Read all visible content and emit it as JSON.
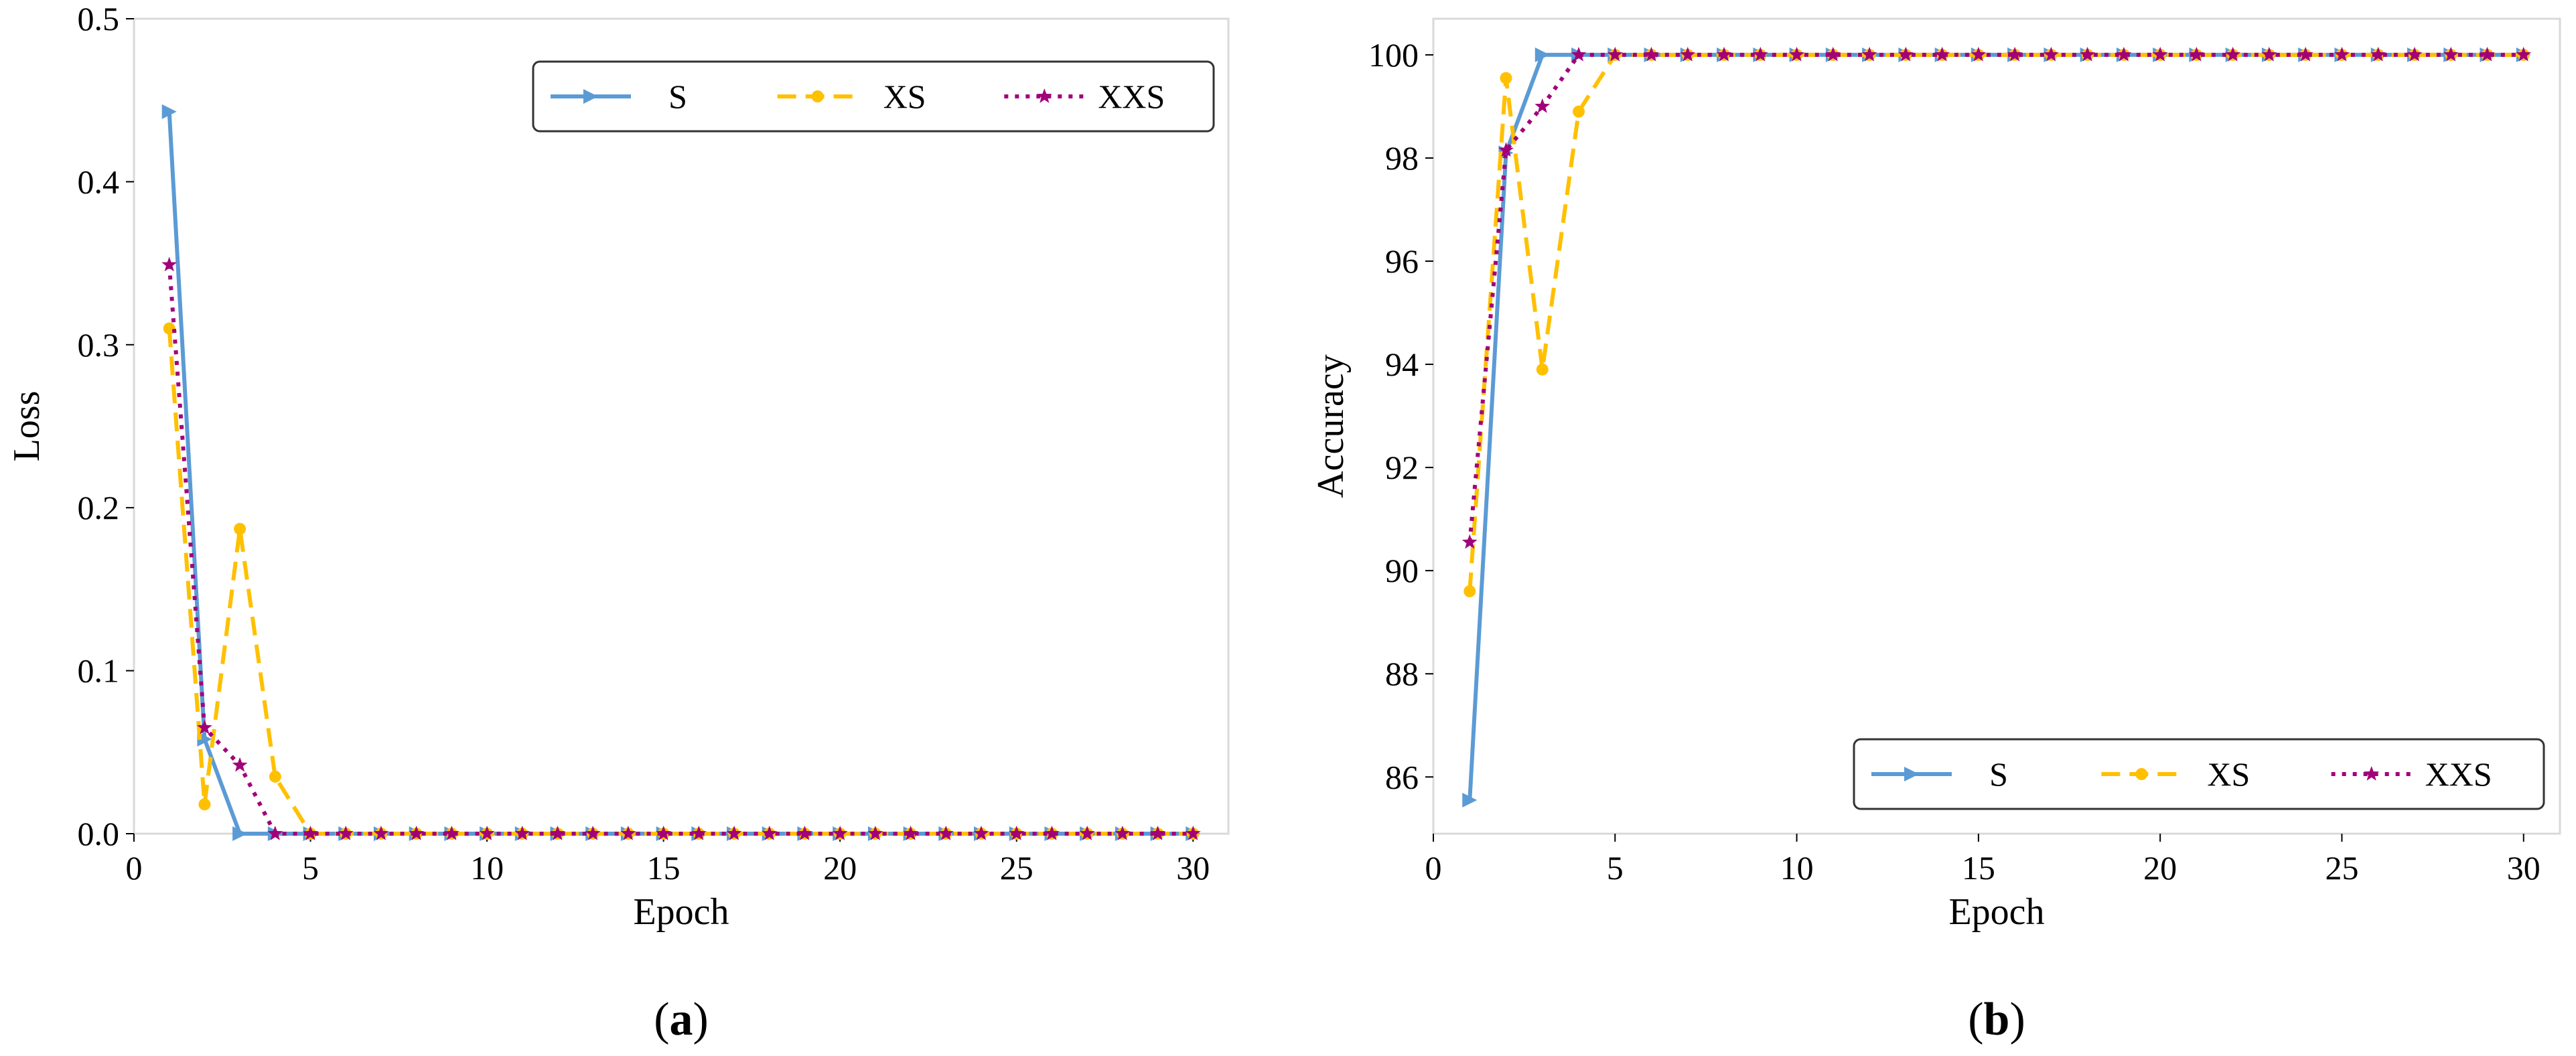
{
  "colors": {
    "S": "#5b9bd5",
    "XS": "#ffc000",
    "XXS": "#a2007a",
    "frame": "#d9d9d9",
    "legend_border": "#333333"
  },
  "chart_data": [
    {
      "type": "line",
      "panel_label_open": "(",
      "panel_label_letter": "a",
      "panel_label_close": ")",
      "xlabel": "Epoch",
      "ylabel": "Loss",
      "xlim": [
        0,
        31
      ],
      "ylim": [
        0,
        0.5
      ],
      "xticks": [
        0,
        5,
        10,
        15,
        20,
        25,
        30
      ],
      "yticks": [
        0.0,
        0.1,
        0.2,
        0.3,
        0.4,
        0.5
      ],
      "ytick_labels": [
        "0.0",
        "0.1",
        "0.2",
        "0.3",
        "0.4",
        "0.5"
      ],
      "grid": false,
      "legend_position": "top-right",
      "x": [
        1,
        2,
        3,
        4,
        5,
        6,
        7,
        8,
        9,
        10,
        11,
        12,
        13,
        14,
        15,
        16,
        17,
        18,
        19,
        20,
        21,
        22,
        23,
        24,
        25,
        26,
        27,
        28,
        29,
        30
      ],
      "series": [
        {
          "name": "S",
          "marker": "triangle-right",
          "dash": "solid",
          "values": [
            0.443,
            0.058,
            0.0,
            0.0,
            0.0,
            0.0,
            0.0,
            0.0,
            0.0,
            0.0,
            0.0,
            0.0,
            0.0,
            0.0,
            0.0,
            0.0,
            0.0,
            0.0,
            0.0,
            0.0,
            0.0,
            0.0,
            0.0,
            0.0,
            0.0,
            0.0,
            0.0,
            0.0,
            0.0,
            0.0
          ]
        },
        {
          "name": "XS",
          "marker": "circle",
          "dash": "dashed",
          "values": [
            0.31,
            0.018,
            0.187,
            0.035,
            0.0,
            0.0,
            0.0,
            0.0,
            0.0,
            0.0,
            0.0,
            0.0,
            0.0,
            0.0,
            0.0,
            0.0,
            0.0,
            0.0,
            0.0,
            0.0,
            0.0,
            0.0,
            0.0,
            0.0,
            0.0,
            0.0,
            0.0,
            0.0,
            0.0,
            0.0
          ]
        },
        {
          "name": "XXS",
          "marker": "star",
          "dash": "dotted",
          "values": [
            0.349,
            0.065,
            0.042,
            0.0,
            0.0,
            0.0,
            0.0,
            0.0,
            0.0,
            0.0,
            0.0,
            0.0,
            0.0,
            0.0,
            0.0,
            0.0,
            0.0,
            0.0,
            0.0,
            0.0,
            0.0,
            0.0,
            0.0,
            0.0,
            0.0,
            0.0,
            0.0,
            0.0,
            0.0,
            0.0
          ]
        }
      ]
    },
    {
      "type": "line",
      "panel_label_open": "(",
      "panel_label_letter": "b",
      "panel_label_close": ")",
      "xlabel": "Epoch",
      "ylabel": "Accuracy",
      "xlim": [
        0,
        31
      ],
      "ylim": [
        84.9,
        100.7
      ],
      "xticks": [
        0,
        5,
        10,
        15,
        20,
        25,
        30
      ],
      "yticks": [
        86,
        88,
        90,
        92,
        94,
        96,
        98,
        100
      ],
      "ytick_labels": [
        "86",
        "88",
        "90",
        "92",
        "94",
        "96",
        "98",
        "100"
      ],
      "grid": false,
      "legend_position": "bottom-right",
      "x": [
        1,
        2,
        3,
        4,
        5,
        6,
        7,
        8,
        9,
        10,
        11,
        12,
        13,
        14,
        15,
        16,
        17,
        18,
        19,
        20,
        21,
        22,
        23,
        24,
        25,
        26,
        27,
        28,
        29,
        30
      ],
      "series": [
        {
          "name": "S",
          "marker": "triangle-right",
          "dash": "solid",
          "values": [
            85.55,
            98.1,
            100,
            100,
            100,
            100,
            100,
            100,
            100,
            100,
            100,
            100,
            100,
            100,
            100,
            100,
            100,
            100,
            100,
            100,
            100,
            100,
            100,
            100,
            100,
            100,
            100,
            100,
            100,
            100
          ]
        },
        {
          "name": "XS",
          "marker": "circle",
          "dash": "dashed",
          "values": [
            89.6,
            99.55,
            93.9,
            98.9,
            100,
            100,
            100,
            100,
            100,
            100,
            100,
            100,
            100,
            100,
            100,
            100,
            100,
            100,
            100,
            100,
            100,
            100,
            100,
            100,
            100,
            100,
            100,
            100,
            100,
            100
          ]
        },
        {
          "name": "XXS",
          "marker": "star",
          "dash": "dotted",
          "values": [
            90.55,
            98.15,
            99.0,
            100,
            100,
            100,
            100,
            100,
            100,
            100,
            100,
            100,
            100,
            100,
            100,
            100,
            100,
            100,
            100,
            100,
            100,
            100,
            100,
            100,
            100,
            100,
            100,
            100,
            100,
            100
          ]
        }
      ]
    }
  ]
}
